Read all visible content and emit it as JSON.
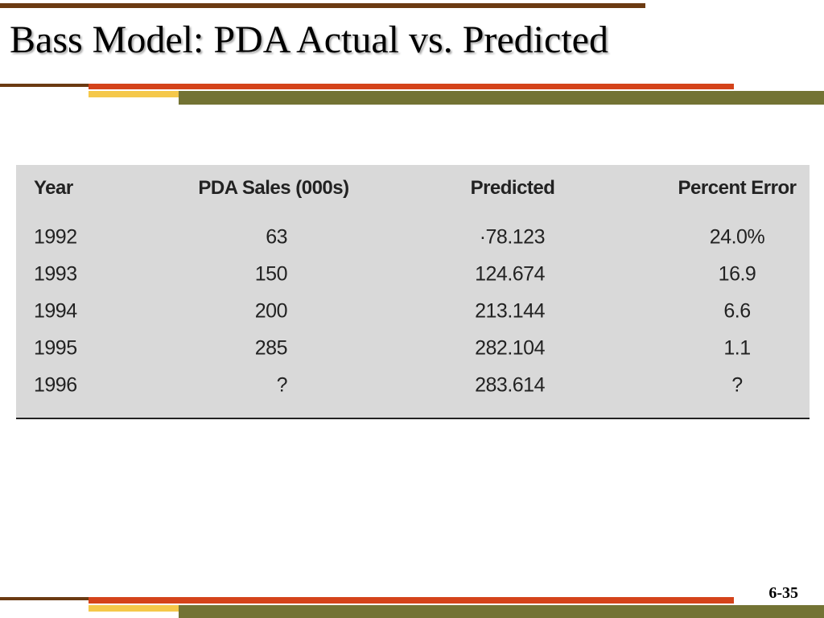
{
  "header": {
    "title": "Bass Model: PDA Actual vs. Predicted"
  },
  "table": {
    "columns": [
      "Year",
      "PDA Sales (000s)",
      "Predicted",
      "Percent Error"
    ],
    "rows": [
      [
        "1992",
        "63",
        "·78.123",
        "24.0%"
      ],
      [
        "1993",
        "150",
        "124.674",
        "16.9"
      ],
      [
        "1994",
        "200",
        "213.144",
        "6.6"
      ],
      [
        "1995",
        "285",
        "282.104",
        "1.1"
      ],
      [
        "1996",
        "?",
        "283.614",
        "?"
      ]
    ]
  },
  "footer": {
    "page_number": "6-35"
  }
}
